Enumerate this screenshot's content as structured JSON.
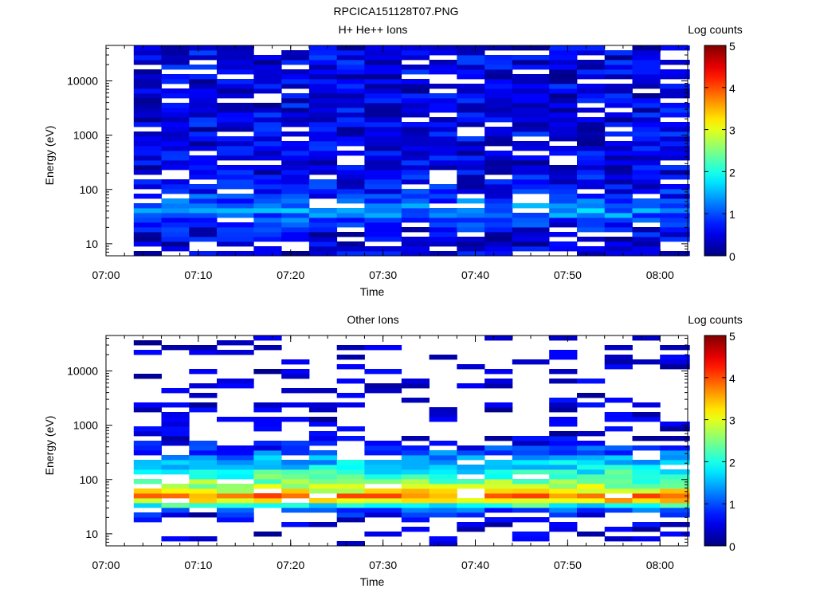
{
  "file_title": "RPCICA151128T07.PNG",
  "chart_data": [
    {
      "type": "heatmap",
      "title": "H+ He++ Ions",
      "xlabel": "Time",
      "ylabel": "Energy (eV)",
      "y_scale": "log",
      "y_range_eV": [
        6,
        45000
      ],
      "x_range": [
        "07:00",
        "08:03"
      ],
      "x_ticks": [
        "07:00",
        "07:10",
        "07:20",
        "07:30",
        "07:40",
        "07:50",
        "08:00"
      ],
      "y_ticks": [
        "10",
        "100",
        "1000",
        "10000"
      ],
      "colorbar_label": "Log counts",
      "colorbar_range": [
        0,
        5
      ],
      "colorbar_ticks": [
        "0",
        "1",
        "2",
        "3",
        "4",
        "5"
      ],
      "time_bins": [
        "07:03",
        "07:06",
        "07:09",
        "07:12",
        "07:16",
        "07:19",
        "07:22",
        "07:25",
        "07:28",
        "07:32",
        "07:35",
        "07:38",
        "07:41",
        "07:44",
        "07:48",
        "07:51",
        "07:54",
        "07:57",
        "08:00"
      ],
      "profile_bins": [
        {
          "energy_eV": 6,
          "log_counts": 0.4
        },
        {
          "energy_eV": 10,
          "log_counts": 0.4
        },
        {
          "energy_eV": 15,
          "log_counts": 0.5
        },
        {
          "energy_eV": 22,
          "log_counts": 0.7
        },
        {
          "energy_eV": 32,
          "log_counts": 1.1
        },
        {
          "energy_eV": 45,
          "log_counts": 1.4
        },
        {
          "energy_eV": 60,
          "log_counts": 1.0
        },
        {
          "energy_eV": 100,
          "log_counts": 0.6
        },
        {
          "energy_eV": 300,
          "log_counts": 0.5
        },
        {
          "energy_eV": 1000,
          "log_counts": 0.5
        },
        {
          "energy_eV": 10000,
          "log_counts": 0.5
        },
        {
          "energy_eV": 45000,
          "log_counts": 0.5
        }
      ]
    },
    {
      "type": "heatmap",
      "title": "Other Ions",
      "xlabel": "Time",
      "ylabel": "Energy (eV)",
      "y_scale": "log",
      "y_range_eV": [
        6,
        45000
      ],
      "x_range": [
        "07:00",
        "08:03"
      ],
      "x_ticks": [
        "07:00",
        "07:10",
        "07:20",
        "07:30",
        "07:40",
        "07:50",
        "08:00"
      ],
      "y_ticks": [
        "10",
        "100",
        "1000",
        "10000"
      ],
      "colorbar_label": "Log counts",
      "colorbar_range": [
        0,
        5
      ],
      "colorbar_ticks": [
        "0",
        "1",
        "2",
        "3",
        "4",
        "5"
      ],
      "time_bins": [
        "07:03",
        "07:06",
        "07:09",
        "07:12",
        "07:16",
        "07:19",
        "07:22",
        "07:25",
        "07:28",
        "07:32",
        "07:35",
        "07:38",
        "07:41",
        "07:44",
        "07:48",
        "07:51",
        "07:54",
        "07:57",
        "08:00"
      ],
      "profile_bins": [
        {
          "energy_eV": 6,
          "log_counts": 0.2
        },
        {
          "energy_eV": 20,
          "log_counts": 0.3
        },
        {
          "energy_eV": 30,
          "log_counts": 1.2
        },
        {
          "energy_eV": 40,
          "log_counts": 3.2
        },
        {
          "energy_eV": 50,
          "log_counts": 3.9
        },
        {
          "energy_eV": 60,
          "log_counts": 3.1
        },
        {
          "energy_eV": 100,
          "log_counts": 2.3
        },
        {
          "energy_eV": 200,
          "log_counts": 1.6
        },
        {
          "energy_eV": 350,
          "log_counts": 0.9
        },
        {
          "energy_eV": 600,
          "log_counts": 0.3
        },
        {
          "energy_eV": 45000,
          "log_counts": 0.2
        }
      ]
    }
  ]
}
